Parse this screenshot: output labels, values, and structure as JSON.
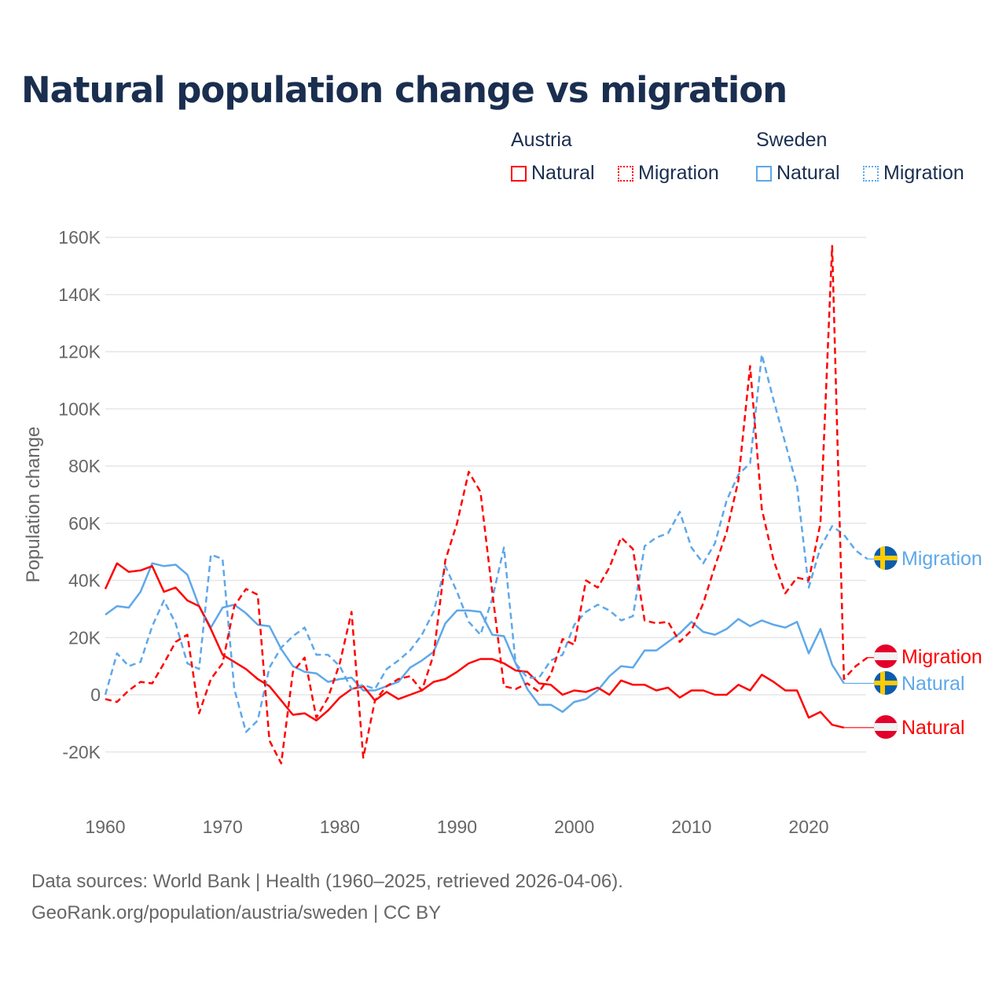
{
  "title": "Natural population change vs migration",
  "legend": {
    "groups": [
      {
        "name": "Austria",
        "items": [
          {
            "label": "Natural",
            "style": "solid"
          },
          {
            "label": "Migration",
            "style": "dotted"
          }
        ],
        "color": "#ff0000"
      },
      {
        "name": "Sweden",
        "items": [
          {
            "label": "Natural",
            "style": "solid"
          },
          {
            "label": "Migration",
            "style": "dotted"
          }
        ],
        "color": "#5ea8ea"
      }
    ]
  },
  "sources": [
    "Data sources: World Bank | Health (1960–2025, retrieved 2026-04-06).",
    "GeoRank.org/population/austria/sweden | CC BY"
  ],
  "chart_data": {
    "type": "line",
    "title": "Natural population change vs migration",
    "xlabel": "",
    "ylabel": "Population change",
    "xlim": [
      1960,
      2025
    ],
    "ylim": [
      -20000,
      160000
    ],
    "xticks": [
      1960,
      1970,
      1980,
      1990,
      2000,
      2010,
      2020
    ],
    "xtick_labels": [
      "1960",
      "1970",
      "1980",
      "1990",
      "2000",
      "2010",
      "2020"
    ],
    "yticks": [
      -20000,
      0,
      20000,
      40000,
      60000,
      80000,
      100000,
      120000,
      140000,
      160000
    ],
    "ytick_labels": [
      "-20K",
      "0",
      "20K",
      "40K",
      "60K",
      "80K",
      "100K",
      "120K",
      "140K",
      "160K"
    ],
    "grid": true,
    "legend_position": "top-right",
    "x_start": 1960,
    "series": [
      {
        "name": "Austria Natural",
        "end_label": "Natural",
        "country": "Austria",
        "color": "#ff0000",
        "dashed": false,
        "values": [
          37,
          46,
          43,
          43.5,
          45,
          36,
          37.5,
          33,
          31,
          23,
          14,
          11.5,
          9,
          5.5,
          3,
          -2,
          -7,
          -6.5,
          -9,
          -5.5,
          -1,
          2,
          3,
          -2,
          1,
          -1.5,
          0,
          1.5,
          4.5,
          5.5,
          8,
          11,
          12.5,
          12.5,
          11,
          8.5,
          8,
          4,
          3.5,
          0,
          1.5,
          1,
          2.5,
          0,
          5,
          3.5,
          3.5,
          1.5,
          2.5,
          -1,
          1.5,
          1.5,
          0,
          0,
          3.5,
          1.5,
          7,
          4.5,
          1.5,
          1.5,
          -8,
          -6,
          -10.5,
          -11.5
        ]
      },
      {
        "name": "Austria Migration",
        "end_label": "Migration",
        "country": "Austria",
        "color": "#ff0000",
        "dashed": true,
        "values": [
          -1.5,
          -2.5,
          1.5,
          4.5,
          4,
          11,
          18.5,
          21,
          -6.5,
          5.5,
          11,
          31,
          37,
          35,
          -16,
          -24,
          8,
          13,
          -8,
          -1,
          11,
          29,
          -22,
          -2,
          3,
          5.5,
          6.5,
          1.5,
          14,
          47,
          60,
          78,
          71,
          36,
          3,
          2,
          4,
          1,
          7,
          19.5,
          17.5,
          40,
          37.5,
          44.5,
          55,
          51,
          26,
          25,
          25.5,
          18.5,
          22.5,
          32,
          45,
          57,
          75,
          115,
          65,
          47,
          35.5,
          41,
          40,
          60,
          157,
          5.5,
          10,
          13
        ]
      },
      {
        "name": "Sweden Natural",
        "end_label": "Natural",
        "country": "Sweden",
        "color": "#5ea8ea",
        "dashed": false,
        "values": [
          28,
          31,
          30.5,
          36,
          46,
          45,
          45.5,
          42,
          31,
          23.5,
          30.5,
          31.5,
          28.5,
          24.5,
          24,
          16,
          10,
          8,
          7.5,
          4.5,
          5.5,
          6,
          1.5,
          1.5,
          3,
          4.5,
          9.5,
          12,
          15,
          25,
          29.5,
          29.5,
          29,
          21,
          20.5,
          11,
          2,
          -3.5,
          -3.5,
          -6,
          -2.5,
          -1.5,
          1.5,
          6.5,
          10,
          9.5,
          15.5,
          15.5,
          18.5,
          21.5,
          25.5,
          22,
          21,
          23,
          26.5,
          24,
          26,
          24.5,
          23.5,
          25.5,
          14.5,
          23,
          10.5,
          4
        ]
      },
      {
        "name": "Sweden Migration",
        "end_label": "Migration",
        "country": "Sweden",
        "color": "#5ea8ea",
        "dashed": true,
        "values": [
          0,
          14.5,
          10,
          11.5,
          24,
          33,
          25,
          11,
          9,
          49,
          47.5,
          2,
          -13,
          -9,
          9.5,
          16.5,
          20.5,
          23.5,
          14,
          14,
          10,
          2,
          3.5,
          2,
          9,
          12,
          15.5,
          21,
          29,
          45,
          36,
          25.5,
          21,
          33.5,
          51.5,
          11,
          6,
          6,
          12,
          14,
          24.5,
          29,
          31.5,
          29.5,
          26,
          27.5,
          52,
          55,
          56.5,
          64,
          51.5,
          46,
          53,
          68,
          77,
          81,
          119,
          103,
          88,
          73,
          37.5,
          51.5,
          59,
          56,
          50.5,
          47.5
        ]
      }
    ],
    "value_unit": "thousands"
  }
}
